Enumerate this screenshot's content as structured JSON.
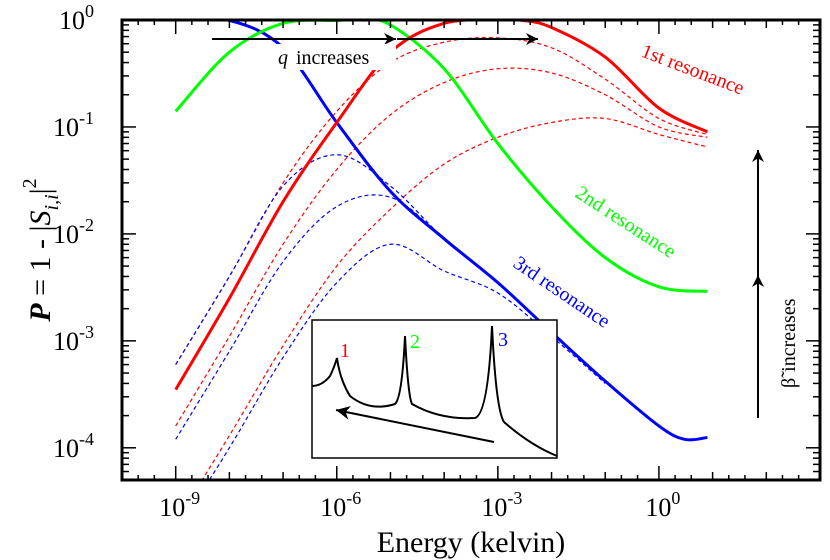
{
  "chart_data": {
    "type": "line",
    "xlabel": "Energy (kelvin)",
    "ylabel": {
      "italic_p": "P",
      "rest": " = 1 - |",
      "s": "S",
      "sub": "i,i",
      "close": "|",
      "sup": "2"
    },
    "x_scale": "log",
    "y_scale": "log",
    "xlim": [
      1e-10,
      1000
    ],
    "ylim": [
      5e-05,
      1
    ],
    "x_ticks": [
      {
        "value": 1e-09,
        "base": "10",
        "exp": "-9"
      },
      {
        "value": 1e-06,
        "base": "10",
        "exp": "-6"
      },
      {
        "value": 0.001,
        "base": "10",
        "exp": "-3"
      },
      {
        "value": 1,
        "base": "10",
        "exp": "0"
      }
    ],
    "y_ticks": [
      {
        "value": 0.0001,
        "base": "10",
        "exp": "-4"
      },
      {
        "value": 0.001,
        "base": "10",
        "exp": "-3"
      },
      {
        "value": 0.01,
        "base": "10",
        "exp": "-2"
      },
      {
        "value": 0.1,
        "base": "10",
        "exp": "-1"
      },
      {
        "value": 1,
        "base": "10",
        "exp": "0"
      }
    ],
    "series": [
      {
        "style": "solid",
        "color": "#0000ff",
        "x": [
          1e-09,
          1e-08,
          1e-07,
          1e-06,
          1e-05,
          0.0001,
          0.001,
          0.01,
          0.1,
          1,
          3,
          8
        ],
        "y": [
          1,
          0.99,
          0.55,
          0.11,
          0.025,
          0.009,
          0.0035,
          0.0012,
          0.00042,
          0.00016,
          0.00012,
          0.000125
        ]
      },
      {
        "style": "solid",
        "color": "#00ff00",
        "x": [
          1e-09,
          1e-08,
          1e-07,
          1e-06,
          3e-06,
          1e-05,
          0.0001,
          0.001,
          0.01,
          0.1,
          1,
          8
        ],
        "y": [
          0.14,
          0.5,
          0.93,
          0.99,
          1,
          0.9,
          0.35,
          0.07,
          0.018,
          0.006,
          0.0032,
          0.0029
        ]
      },
      {
        "style": "solid",
        "color": "#ff0000",
        "x": [
          1e-09,
          1e-08,
          1e-07,
          1e-06,
          1e-05,
          0.0001,
          0.001,
          0.003,
          0.01,
          0.1,
          1,
          8
        ],
        "y": [
          0.00035,
          0.0025,
          0.02,
          0.11,
          0.5,
          0.93,
          1,
          0.99,
          0.85,
          0.45,
          0.15,
          0.09
        ]
      },
      {
        "style": "dashed",
        "color": "#ff0000",
        "x": [
          1e-09,
          1e-08,
          1e-07,
          1e-06,
          1e-05,
          0.0001,
          0.001,
          0.01,
          0.1,
          1,
          8
        ],
        "y": [
          0.0006,
          0.004,
          0.03,
          0.14,
          0.4,
          0.62,
          0.68,
          0.55,
          0.28,
          0.12,
          0.085
        ]
      },
      {
        "style": "dashed",
        "color": "#ff0000",
        "x": [
          1e-09,
          1e-08,
          1e-07,
          1e-06,
          1e-05,
          0.0001,
          0.001,
          0.01,
          0.1,
          1,
          8
        ],
        "y": [
          0.00016,
          0.0011,
          0.008,
          0.04,
          0.13,
          0.26,
          0.35,
          0.32,
          0.2,
          0.1,
          0.08
        ]
      },
      {
        "style": "dashed",
        "color": "#ff0000",
        "x": [
          1e-09,
          1e-08,
          1e-07,
          1e-06,
          1e-05,
          0.0001,
          0.001,
          0.01,
          0.1,
          1,
          8
        ],
        "y": [
          2e-05,
          0.00013,
          0.0009,
          0.005,
          0.017,
          0.045,
          0.08,
          0.11,
          0.12,
          0.085,
          0.065
        ]
      },
      {
        "style": "dashed",
        "color": "#0000ff",
        "x": [
          1e-09,
          1e-08,
          1e-07,
          1e-06,
          1e-05,
          0.0001,
          0.001,
          0.01,
          0.1
        ],
        "y": [
          0.0006,
          0.004,
          0.028,
          0.055,
          0.028,
          0.009,
          0.0035,
          0.0012,
          0.00042
        ]
      },
      {
        "style": "dashed",
        "color": "#0000ff",
        "x": [
          1e-09,
          1e-08,
          1e-07,
          1e-06,
          1e-05,
          0.0001,
          0.001,
          0.01,
          0.1
        ],
        "y": [
          0.00012,
          0.0008,
          0.0055,
          0.018,
          0.022,
          0.009,
          0.0035,
          0.0012,
          0.00042
        ]
      },
      {
        "style": "dashed",
        "color": "#0000ff",
        "x": [
          1e-09,
          1e-08,
          1e-07,
          1e-06,
          1e-05,
          0.0001,
          0.001,
          0.01,
          0.1
        ],
        "y": [
          1.6e-05,
          0.0001,
          0.0007,
          0.0035,
          0.008,
          0.0045,
          0.0028,
          0.0011,
          0.0004
        ]
      }
    ],
    "annotations": {
      "first_resonance": {
        "text": "1st resonance",
        "color": "#ff0000"
      },
      "second_resonance": {
        "text": "2nd resonance",
        "color": "#00ff00"
      },
      "third_resonance": {
        "text": "3rd resonance",
        "color": "#0000ff"
      },
      "q_increases": {
        "var": "q",
        "text": "increases"
      },
      "beta_increases": {
        "var": "β̃",
        "text": "increases"
      }
    },
    "inset": {
      "labels": [
        {
          "text": "1",
          "color": "#ff0000"
        },
        {
          "text": "2",
          "color": "#00ff00"
        },
        {
          "text": "3",
          "color": "#0000ff"
        }
      ]
    }
  }
}
